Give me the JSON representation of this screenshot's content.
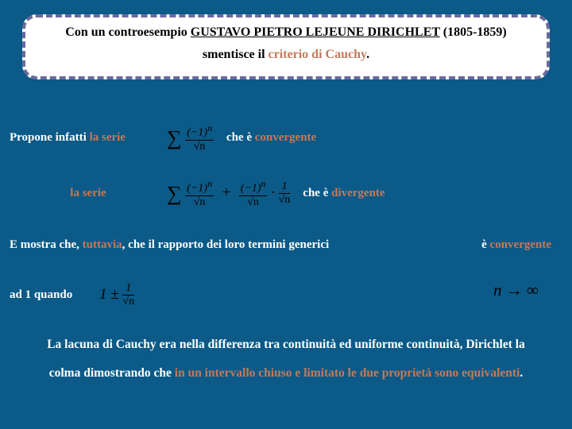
{
  "colors": {
    "background": "#0b5a87",
    "callout_bg": "#ffffff",
    "callout_border": "#6a6a9c",
    "text_white": "#ffffff",
    "text_black": "#000000",
    "highlight": "#c4795b"
  },
  "callout": {
    "line1_prefix": "Con un controesempio ",
    "name": "GUSTAVO PIETRO LEJEUNE DIRICHLET",
    "dates": " (1805-1859)",
    "line2_prefix": "smentisce il ",
    "line2_hl": "criterio di Cauchy",
    "line2_suffix": "."
  },
  "row1": {
    "lead_prefix": "Propone infatti ",
    "lead_hl": "la serie",
    "tail_prefix": "che è ",
    "tail_hl": "convergente"
  },
  "row2": {
    "lead_hl": "la serie",
    "tail_prefix": "che è ",
    "tail_hl": "divergente"
  },
  "line3": {
    "prefix": "E mostra che, ",
    "hl": "tuttavia",
    "mid": ", che il rapporto dei loro termini generici",
    "right_prefix": "è ",
    "right_hl": "convergente"
  },
  "line4": {
    "prefix": "ad 1 quando",
    "limit_n": "n",
    "limit_arrow": " → ∞"
  },
  "para": {
    "t1": "La lacuna di Cauchy era nella differenza tra continuità ed uniforme",
    "t2": "continuità, Dirichlet la colma dimostrando che ",
    "hl": "in un intervallo chiuso e limitato le due proprietà sono equivalenti",
    "t3": "."
  },
  "formulas": {
    "sum1_num": "(−1)",
    "sup_n": "n",
    "sqrt_n": "√n",
    "one": "1",
    "plusminus": "1 ± "
  }
}
